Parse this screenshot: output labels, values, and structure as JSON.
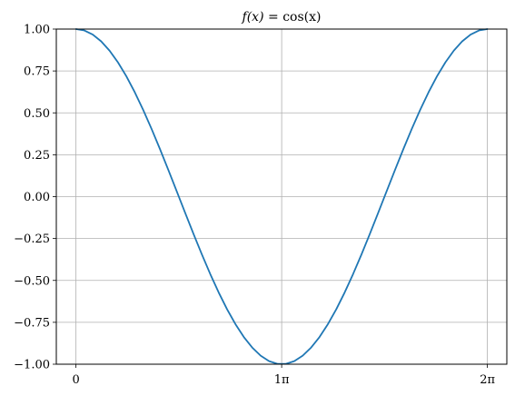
{
  "chart_data": {
    "type": "line",
    "title": "f(x) = cos(x)",
    "title_parts": {
      "lhs": "f(x)",
      "eq": " = ",
      "rhs": "cos(x)"
    },
    "xlabel": "",
    "ylabel": "",
    "xlim": [
      -0.3,
      6.58
    ],
    "ylim": [
      -1.0,
      1.0
    ],
    "grid": true,
    "x_ticks": [
      {
        "value": 0,
        "label": "0"
      },
      {
        "value": 3.14159,
        "label": "1π"
      },
      {
        "value": 6.28319,
        "label": "2π"
      }
    ],
    "y_ticks": [
      {
        "value": 1.0,
        "label": "1.00"
      },
      {
        "value": 0.75,
        "label": "0.75"
      },
      {
        "value": 0.5,
        "label": "0.50"
      },
      {
        "value": 0.25,
        "label": "0.25"
      },
      {
        "value": 0.0,
        "label": "0.00"
      },
      {
        "value": -0.25,
        "label": "−0.25"
      },
      {
        "value": -0.5,
        "label": "−0.50"
      },
      {
        "value": -0.75,
        "label": "−0.75"
      },
      {
        "value": -1.0,
        "label": "−1.00"
      }
    ],
    "series": [
      {
        "color": "#1f77b4",
        "x": [
          0.0,
          0.1282,
          0.2565,
          0.3847,
          0.5129,
          0.6411,
          0.7694,
          0.8976,
          1.0258,
          1.154,
          1.2823,
          1.4105,
          1.5387,
          1.6669,
          1.7952,
          1.9234,
          2.0516,
          2.1799,
          2.3081,
          2.4363,
          2.5645,
          2.6928,
          2.821,
          2.9492,
          3.0774,
          3.2057,
          3.3339,
          3.4621,
          3.5904,
          3.7186,
          3.8468,
          3.975,
          4.1033,
          4.2315,
          4.3597,
          4.4879,
          4.6162,
          4.7444,
          4.8726,
          5.0008,
          5.1291,
          5.2573,
          5.3855,
          5.5138,
          5.642,
          5.7702,
          5.8984,
          6.0267,
          6.1549,
          6.2832
        ],
        "y": [
          1.0,
          0.9918,
          0.9673,
          0.9269,
          0.8713,
          0.8014,
          0.7183,
          0.6235,
          0.5184,
          0.4048,
          0.2846,
          0.1596,
          0.0321,
          -0.096,
          -0.2225,
          -0.3453,
          -0.4625,
          -0.5721,
          -0.6723,
          -0.7614,
          -0.8381,
          -0.901,
          -0.9493,
          -0.9815,
          -0.9979,
          -0.9979,
          -0.9815,
          -0.9493,
          -0.901,
          -0.8381,
          -0.7614,
          -0.6723,
          -0.5721,
          -0.4625,
          -0.3453,
          -0.2225,
          -0.096,
          0.0321,
          0.1596,
          0.2846,
          0.4048,
          0.5184,
          0.6235,
          0.7183,
          0.8014,
          0.8713,
          0.9269,
          0.9673,
          0.9918,
          1.0
        ]
      }
    ]
  }
}
